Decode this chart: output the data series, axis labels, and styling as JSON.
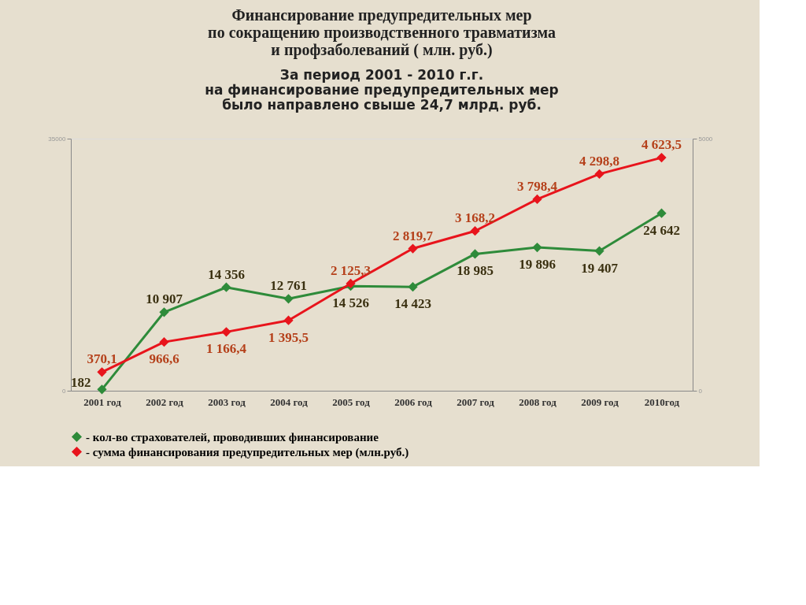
{
  "chart_data": {
    "type": "line",
    "title": [
      "Финансирование предупредительных мер",
      "по сокращению производственного травматизма",
      "и профзаболеваний ( млн. руб.)"
    ],
    "subtitle": [
      "За период 2001 - 2010 г.г.",
      "на финансирование предупредительных мер",
      "было направлено свыше 24,7 млрд. руб."
    ],
    "categories": [
      "2001 год",
      "2002 год",
      "2003 год",
      "2004 год",
      "2005 год",
      "2006 год",
      "2007 год",
      "2008 год",
      "2009 год",
      "2010год"
    ],
    "series": [
      {
        "name": "- кол-во страхователей, проводивших финансирование",
        "color": "#2e8b3a",
        "values": [
          182,
          10907,
          14356,
          12761,
          14526,
          14423,
          18985,
          19896,
          19407,
          24642
        ],
        "value_labels": [
          "182",
          "10 907",
          "14 356",
          "12 761",
          "14 526",
          "14 423",
          "18 985",
          "19 896",
          "19 407",
          "24 642"
        ]
      },
      {
        "name": "- сумма финансирования предупредительных мер (млн.руб.)",
        "color": "#e8141c",
        "axis": "y2",
        "values": [
          370.1,
          966.6,
          1166.4,
          1395.5,
          2125.3,
          2819.7,
          3168.2,
          3798.4,
          4298.8,
          4623.5
        ],
        "value_labels": [
          "370,1",
          "966,6",
          "1 166,4",
          "1 395,5",
          "2 125,3",
          "2 819,7",
          "3 168,2",
          "3 798,4",
          "4 298,8",
          "4 623,5"
        ]
      }
    ],
    "ylim": [
      0,
      35000
    ],
    "yticks": [
      0,
      35000
    ],
    "y2lim": [
      0,
      5000
    ],
    "y2ticks": [
      0,
      5000
    ],
    "grid": false,
    "legend": "bottom",
    "marker": "diamond",
    "line_style": "solid"
  }
}
